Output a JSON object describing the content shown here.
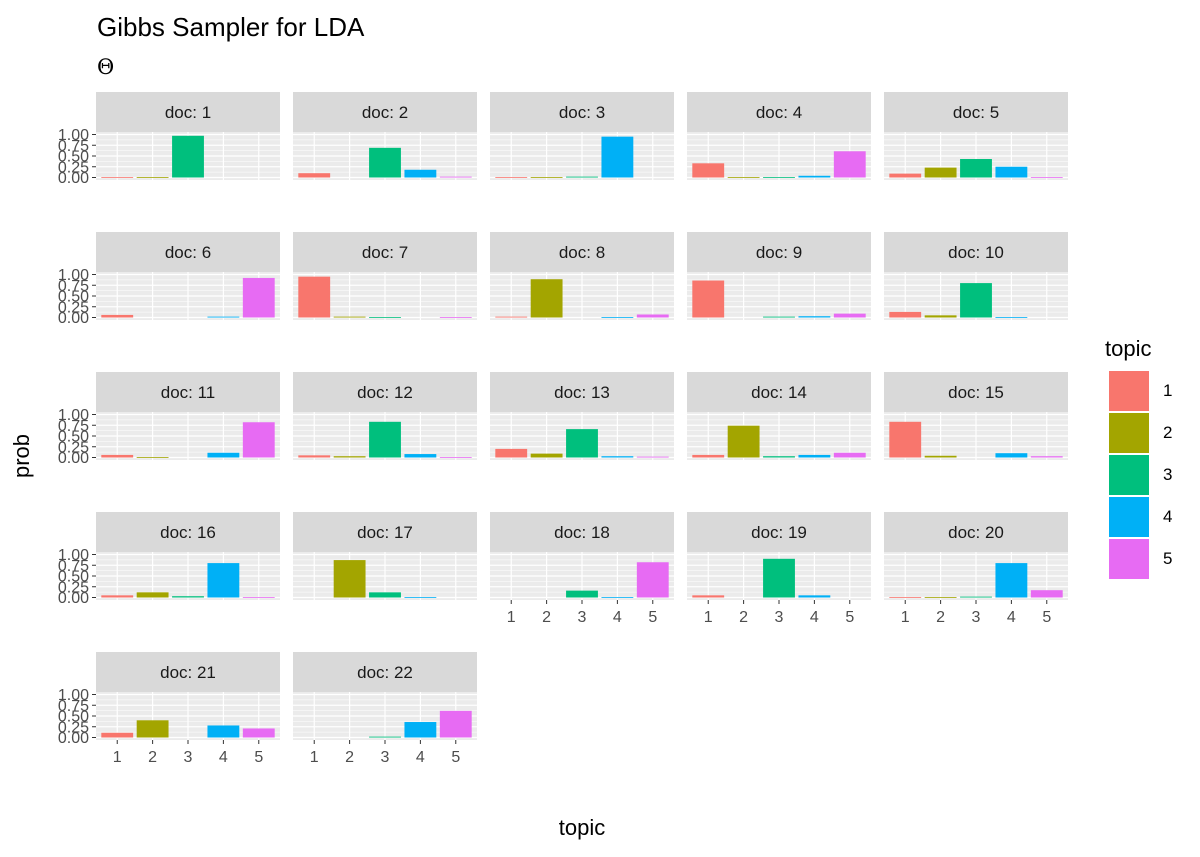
{
  "chart_data": {
    "type": "bar",
    "title": "Gibbs Sampler for LDA",
    "subtitle": "Θ",
    "xlabel": "topic",
    "ylabel": "prob",
    "facet_prefix": "doc: ",
    "categories": [
      "1",
      "2",
      "3",
      "4",
      "5"
    ],
    "ylim": [
      0,
      1
    ],
    "yticks": [
      "0.00",
      "0.25",
      "0.50",
      "0.75",
      "1.00"
    ],
    "grid": true,
    "legend": {
      "title": "topic",
      "placement": "right",
      "entries": [
        "1",
        "2",
        "3",
        "4",
        "5"
      ]
    },
    "colors": [
      "#F8766D",
      "#A3A500",
      "#00BF7D",
      "#00B0F6",
      "#E76BF3"
    ],
    "panels": [
      {
        "doc": "1",
        "values": [
          0.01,
          0.01,
          0.97,
          0.0,
          0.0
        ]
      },
      {
        "doc": "2",
        "values": [
          0.1,
          0.0,
          0.69,
          0.18,
          0.02
        ]
      },
      {
        "doc": "3",
        "values": [
          0.01,
          0.01,
          0.02,
          0.95,
          0.0
        ]
      },
      {
        "doc": "4",
        "values": [
          0.33,
          0.01,
          0.01,
          0.04,
          0.61
        ]
      },
      {
        "doc": "5",
        "values": [
          0.09,
          0.23,
          0.43,
          0.25,
          0.01
        ]
      },
      {
        "doc": "6",
        "values": [
          0.06,
          0.0,
          0.0,
          0.02,
          0.92
        ]
      },
      {
        "doc": "7",
        "values": [
          0.95,
          0.02,
          0.01,
          0.0,
          0.01
        ]
      },
      {
        "doc": "8",
        "values": [
          0.02,
          0.89,
          0.0,
          0.01,
          0.07
        ]
      },
      {
        "doc": "9",
        "values": [
          0.86,
          0.0,
          0.02,
          0.03,
          0.09
        ]
      },
      {
        "doc": "10",
        "values": [
          0.13,
          0.05,
          0.8,
          0.01,
          0.0
        ]
      },
      {
        "doc": "11",
        "values": [
          0.06,
          0.01,
          0.0,
          0.11,
          0.82
        ]
      },
      {
        "doc": "12",
        "values": [
          0.05,
          0.03,
          0.83,
          0.08,
          0.01
        ]
      },
      {
        "doc": "13",
        "values": [
          0.2,
          0.09,
          0.66,
          0.03,
          0.02
        ]
      },
      {
        "doc": "14",
        "values": [
          0.06,
          0.74,
          0.03,
          0.06,
          0.11
        ]
      },
      {
        "doc": "15",
        "values": [
          0.83,
          0.04,
          0.0,
          0.1,
          0.03
        ]
      },
      {
        "doc": "16",
        "values": [
          0.05,
          0.12,
          0.03,
          0.8,
          0.01
        ]
      },
      {
        "doc": "17",
        "values": [
          0.0,
          0.87,
          0.12,
          0.01,
          0.0
        ]
      },
      {
        "doc": "18",
        "values": [
          0.0,
          0.0,
          0.16,
          0.01,
          0.82
        ]
      },
      {
        "doc": "19",
        "values": [
          0.05,
          0.0,
          0.9,
          0.05,
          0.0
        ]
      },
      {
        "doc": "20",
        "values": [
          0.01,
          0.01,
          0.02,
          0.8,
          0.17
        ]
      },
      {
        "doc": "21",
        "values": [
          0.11,
          0.4,
          0.0,
          0.28,
          0.21
        ]
      },
      {
        "doc": "22",
        "values": [
          0.0,
          0.0,
          0.02,
          0.36,
          0.62
        ]
      }
    ]
  }
}
